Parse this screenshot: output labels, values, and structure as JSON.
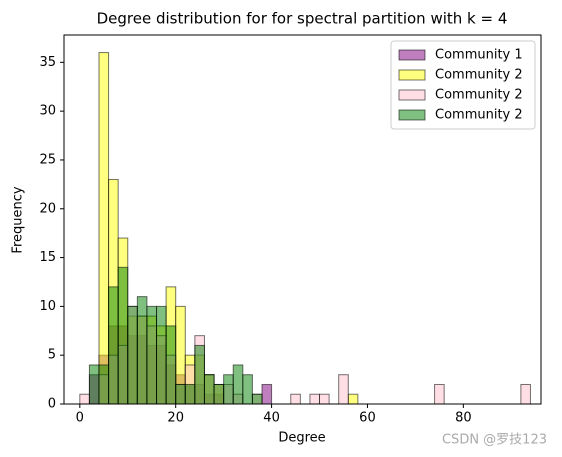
{
  "chart_data": {
    "type": "histogram",
    "title": "Degree distribution for for spectral partition with k = 4",
    "x_label": "Degree",
    "y_label": "Frequency",
    "bins": [
      0,
      2,
      4,
      6,
      8,
      10,
      12,
      14,
      16,
      18,
      20,
      22,
      24,
      26,
      28,
      30,
      32,
      34,
      36,
      38,
      40,
      42,
      44,
      46,
      48,
      50,
      52,
      54,
      56,
      58,
      60,
      62,
      64,
      66,
      68,
      70,
      72,
      74,
      76,
      78,
      80,
      82,
      84,
      86,
      88,
      90,
      92,
      94
    ],
    "series": [
      {
        "name": "Community 1",
        "color": "purple",
        "values": [
          0,
          3,
          5,
          8,
          8,
          7,
          7,
          6,
          6,
          4,
          3,
          2,
          2,
          1,
          1,
          0,
          0,
          0,
          0,
          2,
          0,
          0,
          0,
          0,
          0,
          0,
          0,
          0,
          0,
          0,
          0,
          0,
          0,
          0,
          0,
          0,
          0,
          0,
          0,
          0,
          0,
          0,
          0,
          0,
          0,
          0,
          0
        ]
      },
      {
        "name": "Community 2",
        "color": "yellow",
        "values": [
          0,
          0,
          36,
          23,
          17,
          9,
          9,
          9,
          8,
          12,
          10,
          5,
          5,
          3,
          2,
          0,
          0,
          0,
          0,
          0,
          0,
          0,
          0,
          0,
          0,
          0,
          0,
          0,
          1,
          0,
          0,
          0,
          0,
          0,
          0,
          0,
          0,
          0,
          0,
          0,
          0,
          0,
          0,
          0,
          0,
          0,
          0
        ]
      },
      {
        "name": "Community 2",
        "color": "pink",
        "values": [
          1,
          0,
          3,
          5,
          6,
          10,
          9,
          8,
          7,
          5,
          2,
          4,
          7,
          3,
          2,
          2,
          1,
          0,
          1,
          0,
          0,
          0,
          1,
          0,
          1,
          1,
          0,
          3,
          0,
          0,
          0,
          0,
          0,
          0,
          0,
          0,
          0,
          2,
          0,
          0,
          0,
          0,
          0,
          0,
          0,
          0,
          2
        ]
      },
      {
        "name": "Community 2",
        "color": "green",
        "values": [
          0,
          4,
          4,
          12,
          14,
          10,
          11,
          10,
          10,
          8,
          2,
          2,
          6,
          3,
          2,
          3,
          4,
          3,
          1,
          0,
          0,
          0,
          0,
          0,
          0,
          0,
          0,
          0,
          0,
          0,
          0,
          0,
          0,
          0,
          0,
          0,
          0,
          0,
          0,
          0,
          0,
          0,
          0,
          0,
          0,
          0,
          0
        ]
      }
    ],
    "xlim": [
      -3.3,
      96.2
    ],
    "ylim": [
      0,
      37.8
    ],
    "xticks": [
      0,
      20,
      40,
      60,
      80
    ],
    "yticks": [
      0,
      5,
      10,
      15,
      20,
      25,
      30,
      35
    ],
    "legend": "upper right",
    "alpha": 0.5,
    "watermark": "CSDN @罗技123"
  }
}
